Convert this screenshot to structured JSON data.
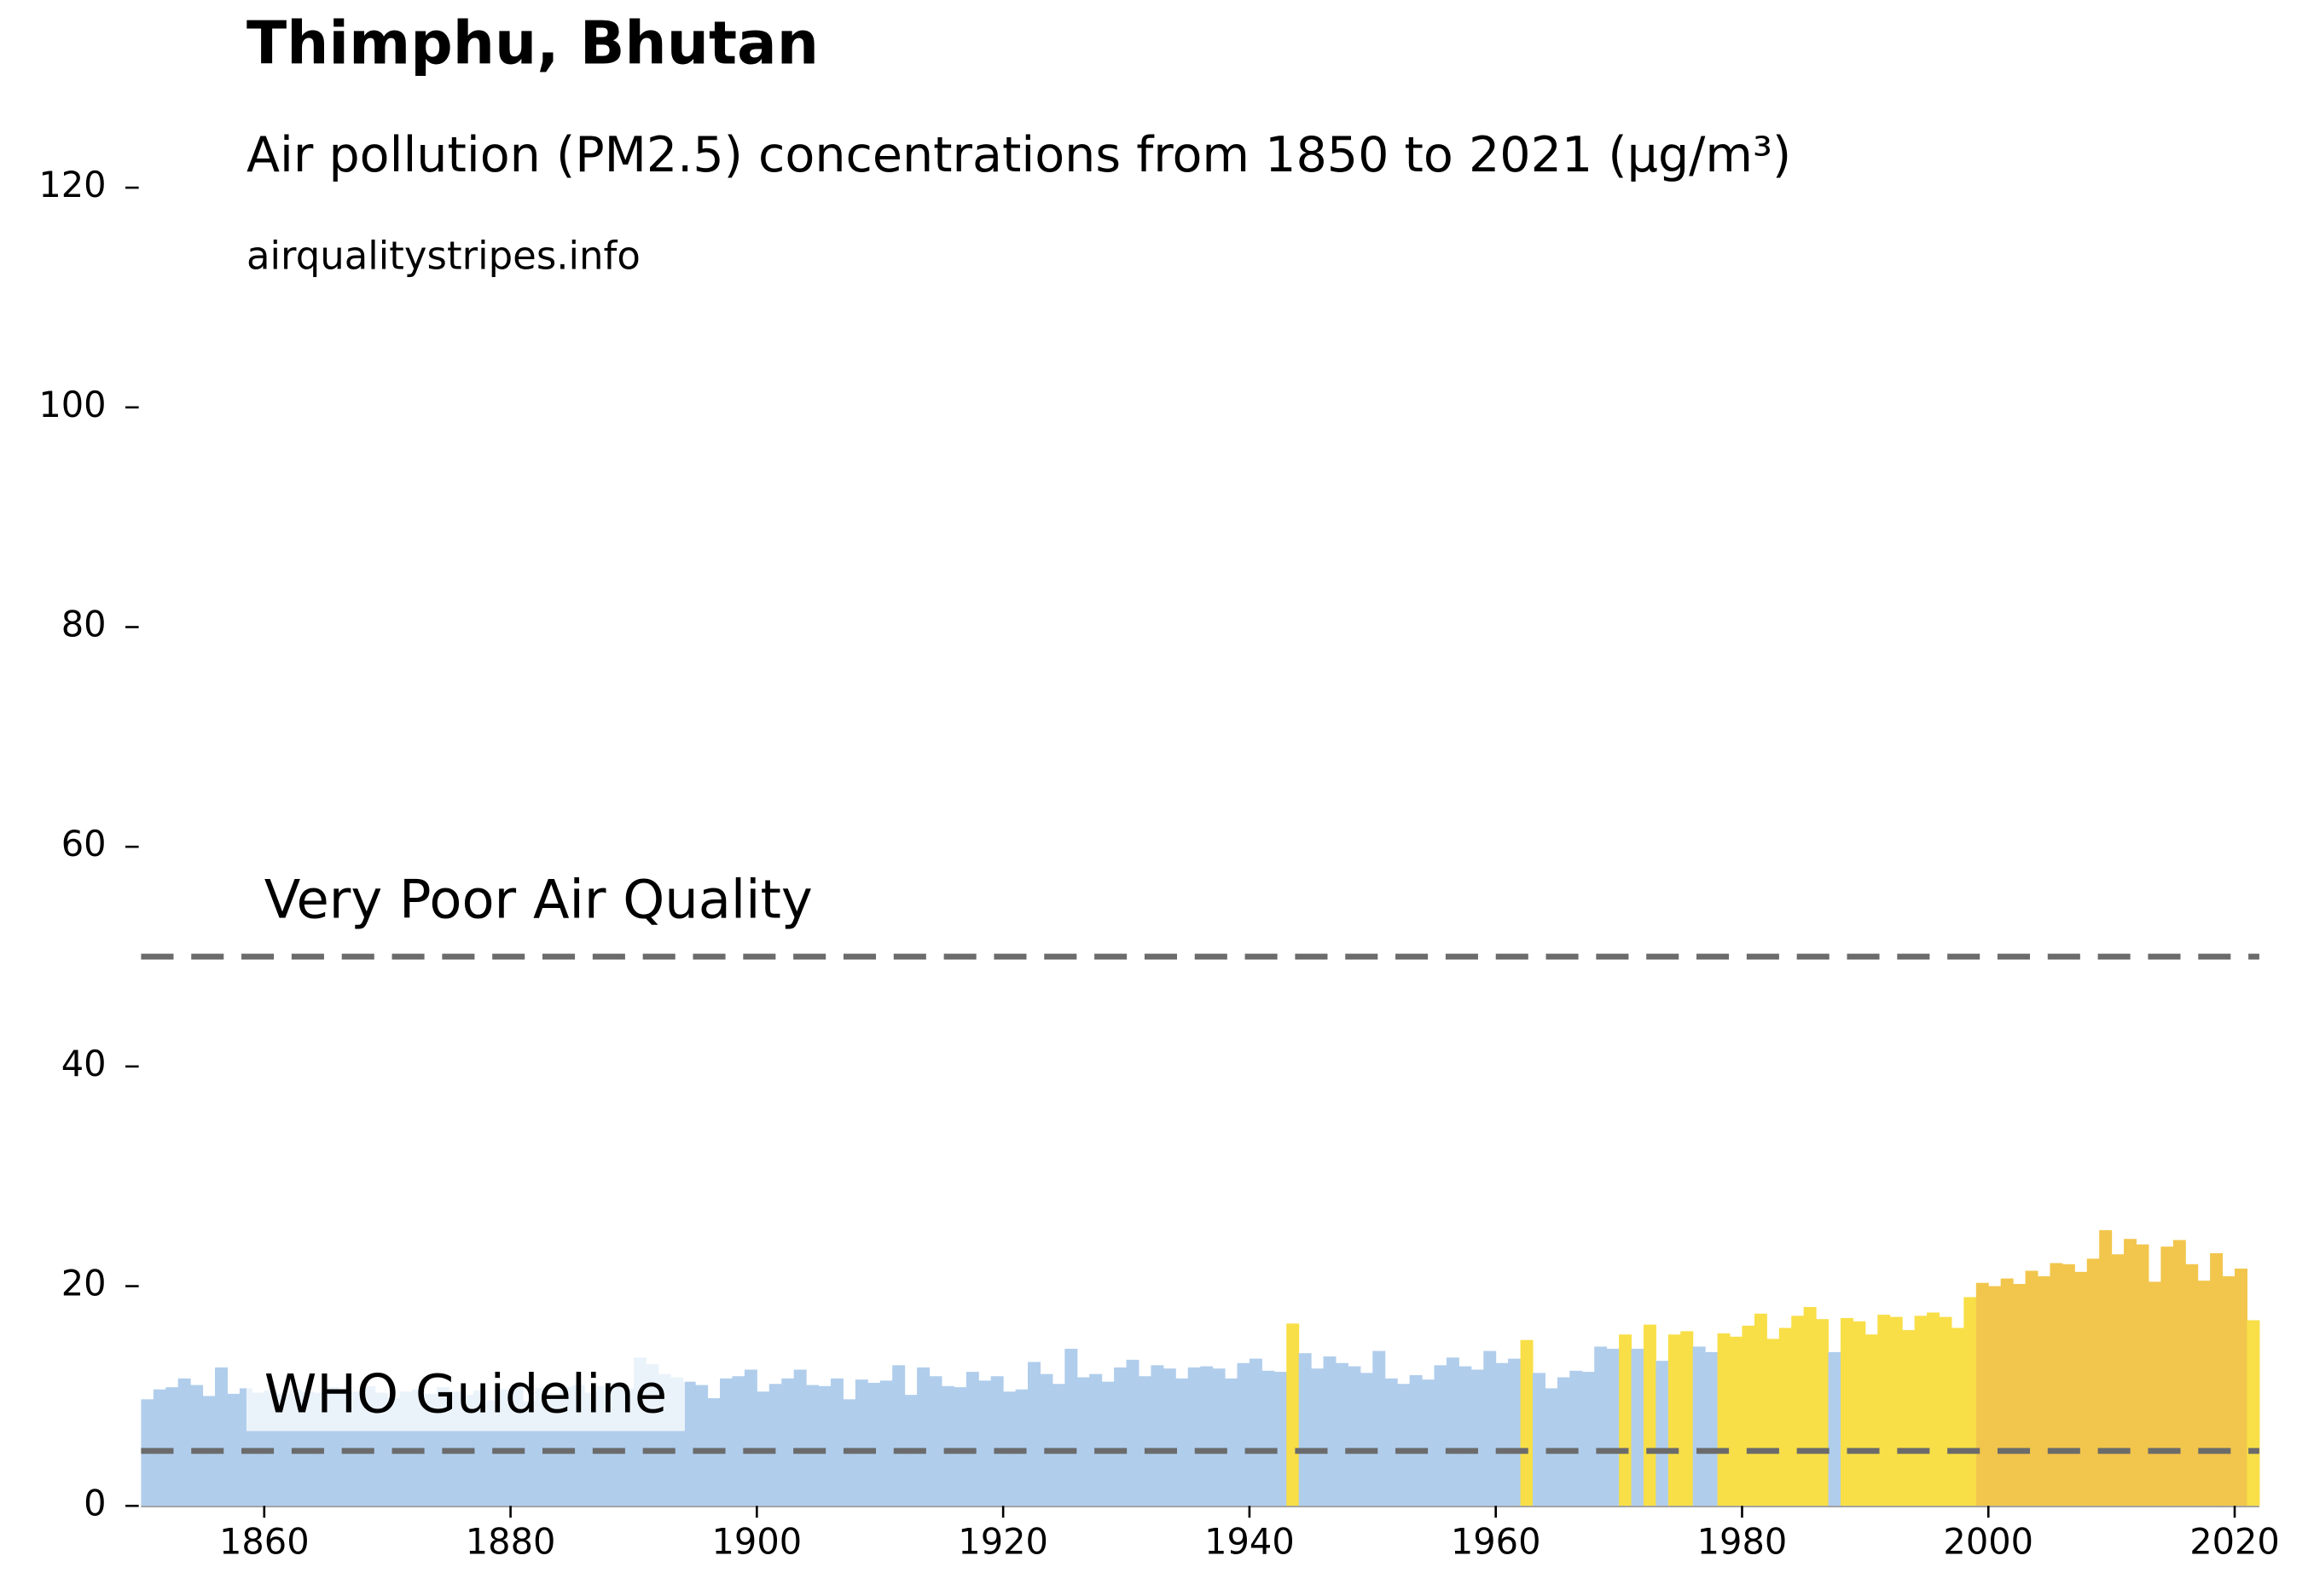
{
  "chart_data": {
    "type": "bar",
    "title": "Thimphu, Bhutan",
    "subtitle": "Air pollution (PM2.5) concentrations from 1850 to 2021 (µg/m³)",
    "source": "airqualitystripes.info",
    "x_start": 1850,
    "values": [
      9.7,
      10.6,
      10.8,
      11.6,
      11.0,
      10.0,
      12.6,
      10.2,
      10.7,
      10.3,
      10.5,
      10.2,
      10.6,
      10.4,
      10.3,
      10.8,
      10.6,
      10.4,
      10.9,
      10.3,
      9.8,
      10.4,
      10.6,
      10.2,
      10.8,
      10.4,
      10.1,
      10.5,
      9.6,
      10.6,
      10.9,
      9.5,
      10.7,
      9.7,
      10.8,
      11.0,
      10.3,
      10.9,
      11.2,
      10.7,
      13.5,
      12.9,
      12.0,
      11.7,
      11.3,
      11.0,
      9.8,
      11.6,
      11.8,
      12.4,
      10.4,
      11.1,
      11.6,
      12.4,
      11.0,
      10.9,
      11.6,
      9.7,
      11.5,
      11.2,
      11.4,
      12.8,
      10.1,
      12.6,
      11.8,
      10.9,
      10.8,
      12.2,
      11.4,
      11.8,
      10.4,
      10.6,
      13.1,
      12.0,
      11.1,
      14.3,
      11.7,
      12.0,
      11.3,
      12.6,
      13.3,
      11.8,
      12.8,
      12.5,
      11.6,
      12.6,
      12.7,
      12.5,
      11.6,
      13.0,
      13.4,
      12.3,
      12.2,
      16.6,
      13.9,
      12.5,
      13.6,
      13.0,
      12.7,
      12.1,
      14.1,
      11.6,
      11.1,
      11.9,
      11.5,
      12.8,
      13.5,
      12.7,
      12.4,
      14.1,
      13.0,
      13.4,
      15.1,
      12.1,
      10.7,
      11.7,
      12.3,
      12.2,
      14.5,
      14.3,
      15.6,
      14.3,
      16.5,
      13.2,
      15.6,
      15.9,
      14.5,
      14.0,
      15.7,
      15.4,
      16.4,
      17.5,
      15.2,
      16.2,
      17.3,
      18.1,
      17.0,
      14.0,
      17.1,
      16.8,
      15.6,
      17.4,
      17.2,
      16.0,
      17.3,
      17.6,
      17.2,
      16.2,
      19.0,
      20.3,
      20.0,
      20.7,
      20.2,
      21.4,
      20.9,
      22.1,
      22.0,
      21.3,
      22.5,
      25.1,
      22.9,
      24.3,
      23.8,
      20.4,
      23.6,
      24.2,
      22.0,
      20.5,
      23.0,
      20.9,
      21.6,
      16.9
    ],
    "color_breaks": [
      15,
      20
    ],
    "colors": [
      "#b0cdec",
      "#f8df47",
      "#f2c64c"
    ],
    "xlim": [
      1850,
      2022
    ],
    "xticks": [
      1860,
      1880,
      1900,
      1920,
      1940,
      1960,
      1980,
      2000,
      2020
    ],
    "ylim": [
      0,
      120
    ],
    "yticks": [
      0,
      20,
      40,
      60,
      80,
      100,
      120
    ],
    "hlines": [
      {
        "value": 50,
        "label": "Very Poor Air Quality"
      },
      {
        "value": 5,
        "label": "WHO Guideline"
      }
    ]
  }
}
